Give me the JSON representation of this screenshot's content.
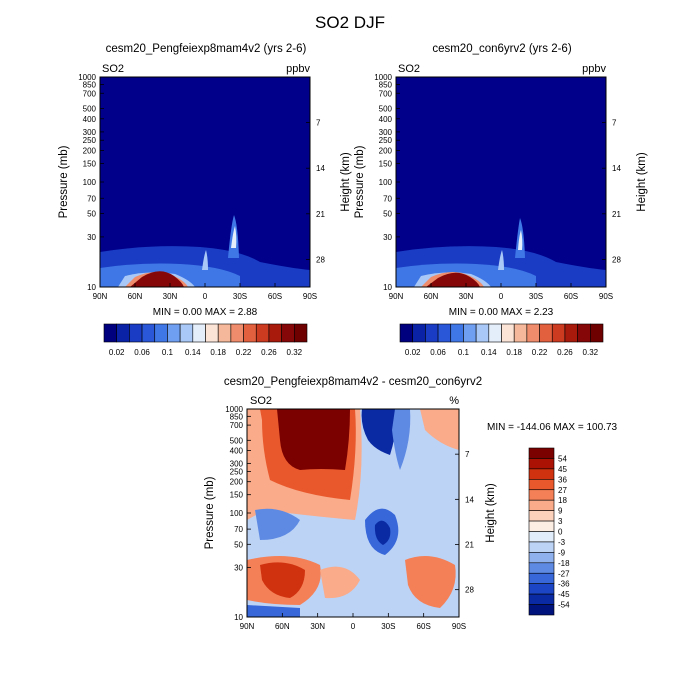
{
  "figure": {
    "title": "SO2 DJF"
  },
  "chart_data": [
    {
      "type": "heatmap",
      "title": "cesm20_Pengfeiexp8mam4v2 (yrs 2-6)",
      "left_label": "SO2",
      "units": "ppbv",
      "ylabel": "Pressure (mb)",
      "ylabel_right": "Height (km)",
      "x_ticks": [
        "90N",
        "60N",
        "30N",
        "0",
        "30S",
        "60S",
        "90S"
      ],
      "y_ticks": [
        10,
        30,
        50,
        70,
        100,
        150,
        200,
        250,
        300,
        400,
        500,
        700,
        850,
        1000
      ],
      "y_right_ticks": [
        28,
        21,
        14,
        7
      ],
      "stats": "MIN =   0.00  MAX =   2.88",
      "colorbar_labels": [
        "0.02",
        "0.06",
        "0.1",
        "0.14",
        "0.18",
        "0.22",
        "0.26",
        "0.32"
      ],
      "colorbar_levels": [
        0.02,
        0.04,
        0.06,
        0.08,
        0.1,
        0.12,
        0.14,
        0.16,
        0.18,
        0.2,
        0.22,
        0.24,
        0.26,
        0.28,
        0.32
      ],
      "xlim": [
        "90N",
        "90S"
      ],
      "ylim": [
        1000,
        10
      ]
    },
    {
      "type": "heatmap",
      "title": "cesm20_con6yrv2 (yrs 2-6)",
      "left_label": "SO2",
      "units": "ppbv",
      "ylabel": "Pressure (mb)",
      "ylabel_right": "Height (km)",
      "x_ticks": [
        "90N",
        "60N",
        "30N",
        "0",
        "30S",
        "60S",
        "90S"
      ],
      "y_ticks": [
        10,
        30,
        50,
        70,
        100,
        150,
        200,
        250,
        300,
        400,
        500,
        700,
        850,
        1000
      ],
      "y_right_ticks": [
        28,
        21,
        14,
        7
      ],
      "stats": "MIN =   0.00  MAX =   2.23",
      "colorbar_labels": [
        "0.02",
        "0.06",
        "0.1",
        "0.14",
        "0.18",
        "0.22",
        "0.26",
        "0.32"
      ],
      "colorbar_levels": [
        0.02,
        0.04,
        0.06,
        0.08,
        0.1,
        0.12,
        0.14,
        0.16,
        0.18,
        0.2,
        0.22,
        0.24,
        0.26,
        0.28,
        0.32
      ],
      "xlim": [
        "90N",
        "90S"
      ],
      "ylim": [
        1000,
        10
      ]
    },
    {
      "type": "heatmap",
      "title": "cesm20_Pengfeiexp8mam4v2 - cesm20_con6yrv2",
      "left_label": "SO2",
      "units": "%",
      "ylabel": "Pressure (mb)",
      "ylabel_right": "Height (km)",
      "x_ticks": [
        "90N",
        "60N",
        "30N",
        "0",
        "30S",
        "60S",
        "90S"
      ],
      "y_ticks": [
        10,
        30,
        50,
        70,
        100,
        150,
        200,
        250,
        300,
        400,
        500,
        700,
        850,
        1000
      ],
      "y_right_ticks": [
        28,
        21,
        14,
        7
      ],
      "stats": "MIN = -144.06  MAX = 100.73",
      "colorbar_labels": [
        "54",
        "45",
        "36",
        "27",
        "18",
        "9",
        "3",
        "0",
        "-3",
        "-9",
        "-18",
        "-27",
        "-36",
        "-45",
        "-54"
      ],
      "xlim": [
        "90N",
        "90S"
      ],
      "ylim": [
        1000,
        10
      ]
    }
  ],
  "colors": {
    "seq_palette": [
      "#00007f",
      "#0a22a5",
      "#1a3cc4",
      "#2a57d8",
      "#3f78e6",
      "#6f9ff0",
      "#a9c8f7",
      "#e4eefb",
      "#fbe3d6",
      "#f6b89b",
      "#ef8c6b",
      "#e3603f",
      "#cc3a1f",
      "#a81a0c",
      "#860707",
      "#6e0000"
    ],
    "diff_palette": [
      "#7b0000",
      "#ac1204",
      "#d0320f",
      "#e9582c",
      "#f48057",
      "#f9ab8a",
      "#fcd2bc",
      "#fdeee4",
      "#e2edfb",
      "#bcd3f6",
      "#8fb2ee",
      "#5e8ae3",
      "#3767d9",
      "#1b45c4",
      "#0a2aa3",
      "#00127c"
    ],
    "deep_blue": "#00008b"
  }
}
